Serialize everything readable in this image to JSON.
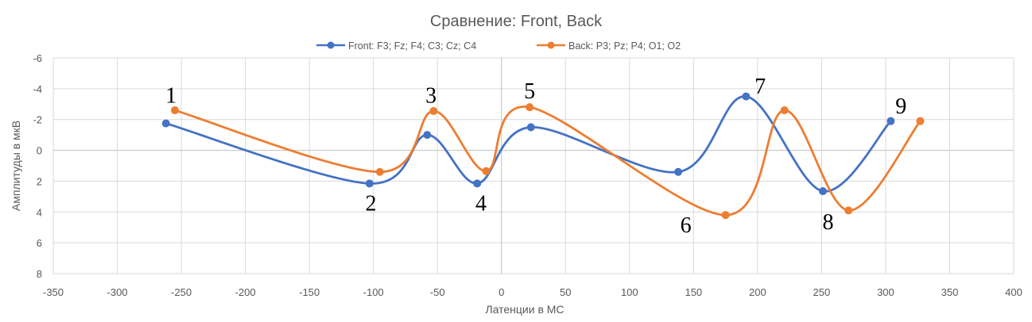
{
  "chart_data": {
    "type": "line",
    "smooth": true,
    "title": "Сравнение: Front, Back",
    "xlabel": "Латенции в МС",
    "ylabel": "Амплитуды в мкВ",
    "xlim": [
      -350,
      400
    ],
    "ylim": [
      -6,
      8
    ],
    "y_inverted": true,
    "x_ticks": [
      -350,
      -300,
      -250,
      -200,
      -150,
      -100,
      -50,
      0,
      50,
      100,
      150,
      200,
      250,
      300,
      350,
      400
    ],
    "y_ticks": [
      -6,
      -4,
      -2,
      0,
      2,
      4,
      6,
      8
    ],
    "grid": true,
    "legend_position": "top",
    "series": [
      {
        "name": "Front: F3; Fz; F4; C3; Cz; C4",
        "color": "#4472C4",
        "x": [
          -262,
          -103,
          -58,
          -19,
          23,
          138,
          191,
          251,
          304
        ],
        "y": [
          -1.75,
          2.15,
          -1.0,
          2.15,
          -1.5,
          1.4,
          -3.5,
          2.65,
          -1.9
        ]
      },
      {
        "name": "Back: P3; Pz; P4; O1; O2",
        "color": "#ED7D31",
        "x": [
          -255,
          -95,
          -53,
          -12,
          22,
          175,
          221,
          271,
          327
        ],
        "y": [
          -2.6,
          1.4,
          -2.55,
          1.35,
          -2.8,
          4.2,
          -2.6,
          3.9,
          -1.9
        ]
      }
    ],
    "annotations": [
      {
        "text": "1",
        "x": -258,
        "y": -3.6
      },
      {
        "text": "2",
        "x": -102,
        "y": 3.4
      },
      {
        "text": "3",
        "x": -55,
        "y": -3.6
      },
      {
        "text": "4",
        "x": -16,
        "y": 3.4
      },
      {
        "text": "5",
        "x": 22,
        "y": -3.9
      },
      {
        "text": "6",
        "x": 144,
        "y": 4.8
      },
      {
        "text": "7",
        "x": 202,
        "y": -4.2
      },
      {
        "text": "8",
        "x": 255,
        "y": 4.6
      },
      {
        "text": "9",
        "x": 312,
        "y": -2.9
      }
    ]
  },
  "colors": {
    "grid": "#D9D9D9",
    "axis_zero": "#BFBFBF",
    "text": "#595959"
  }
}
